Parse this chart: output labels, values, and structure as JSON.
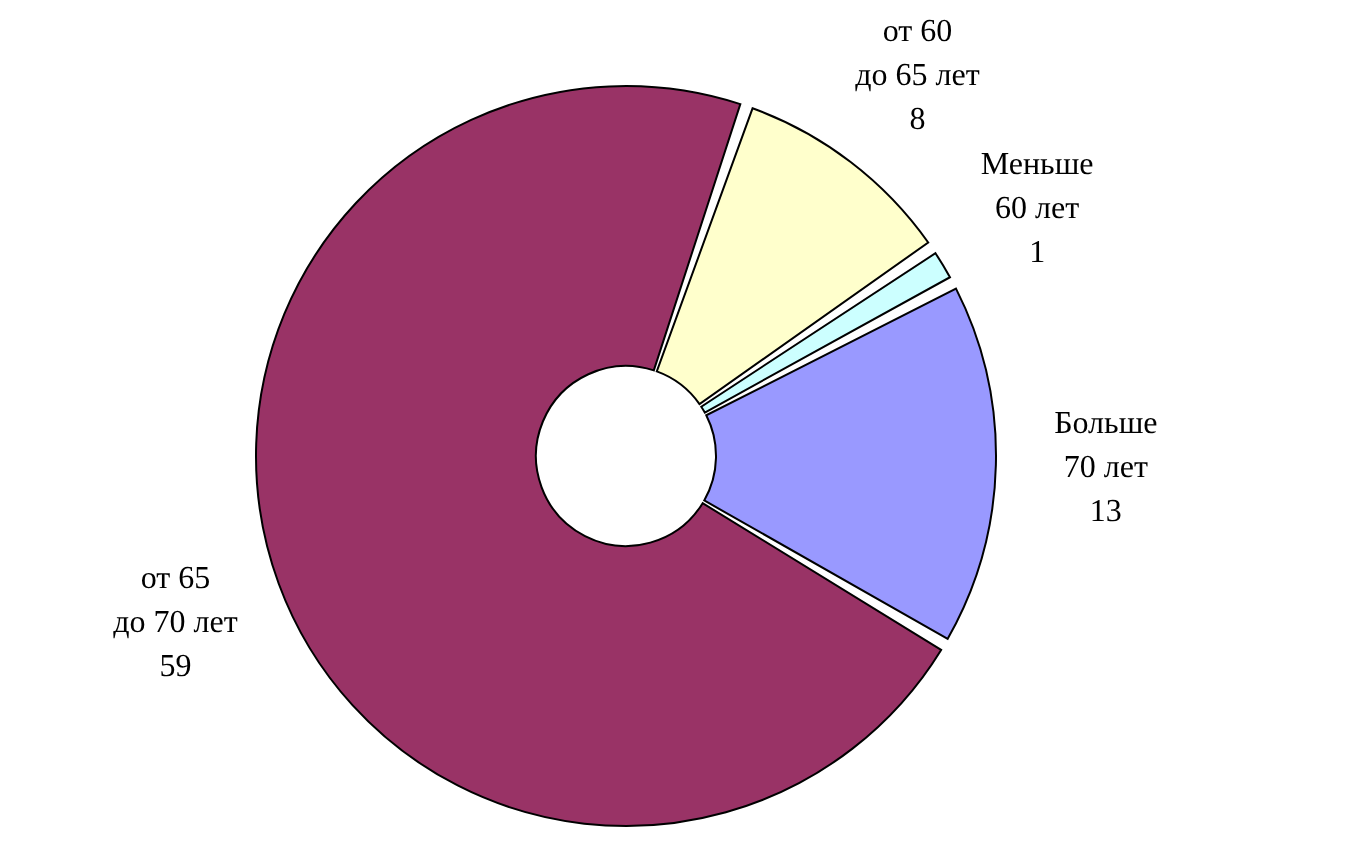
{
  "chart_data": {
    "type": "donut",
    "categories": [
      "от 60\nдо 65 лет",
      "Меньше\n60 лет",
      "Больше\n70 лет",
      "от 65\nдо 70 лет"
    ],
    "values": [
      8,
      1,
      13,
      59
    ],
    "colors": [
      "#ffffcc",
      "#ccffff",
      "#9999ff",
      "#993366"
    ],
    "data_labels": true,
    "legend": false
  }
}
